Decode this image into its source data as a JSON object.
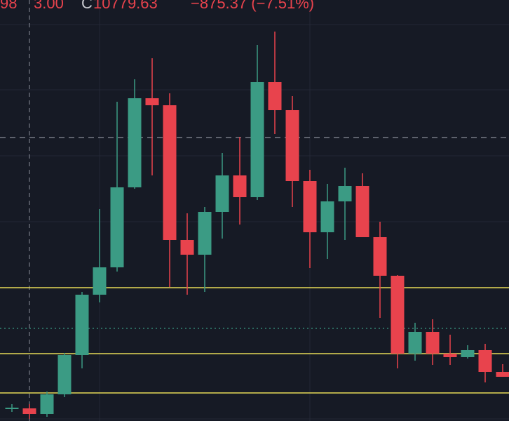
{
  "chart_data": {
    "type": "candlestick",
    "header": [
      "98",
      "3.00",
      "C",
      "10779.63",
      "−875.37 (−7.51%)"
    ],
    "categories": [
      null,
      null,
      null,
      null,
      null,
      null,
      null,
      null,
      null,
      null,
      null,
      null,
      null,
      null,
      null,
      null,
      null,
      null,
      null,
      null,
      null,
      null,
      null,
      null,
      null,
      null,
      null,
      null,
      null
    ],
    "open": [
      17,
      18,
      10,
      38,
      94,
      180,
      219,
      333,
      460,
      450,
      258,
      237,
      298,
      350,
      319,
      483,
      443,
      342,
      269,
      313,
      335,
      262,
      207,
      96,
      127,
      96,
      91,
      101,
      70
    ],
    "high": [
      24,
      24,
      42,
      97,
      184,
      302,
      455,
      487,
      517,
      467,
      296,
      305,
      382,
      405,
      536,
      555,
      463,
      358,
      338,
      361,
      353,
      284,
      208,
      140,
      145,
      123,
      108,
      110,
      81
    ],
    "low": [
      13,
      3,
      6,
      34,
      75,
      169,
      213,
      331,
      350,
      191,
      180,
      184,
      260,
      280,
      315,
      409,
      305,
      218,
      231,
      258,
      262,
      147,
      75,
      86,
      80,
      80,
      89,
      55,
      63
    ],
    "close": [
      19,
      10,
      38,
      94,
      180,
      219,
      333,
      460,
      450,
      258,
      237,
      298,
      350,
      319,
      483,
      443,
      342,
      269,
      313,
      335,
      262,
      207,
      96,
      127,
      96,
      91,
      101,
      70,
      63
    ],
    "up_color": "#3b9b84",
    "down_color": "#e8434d",
    "lines": [
      {
        "value": 404,
        "color": "#8a8e99",
        "style": "dashed"
      },
      {
        "value": 190,
        "color": "#e6d957",
        "style": "solid"
      },
      {
        "value": 132,
        "color": "#3b9b84",
        "style": "dotted"
      },
      {
        "value": 96,
        "color": "#e6d957",
        "style": "solid"
      },
      {
        "value": 40,
        "color": "#e6d957",
        "style": "solid"
      }
    ],
    "ylim": [
      0,
      600
    ]
  }
}
